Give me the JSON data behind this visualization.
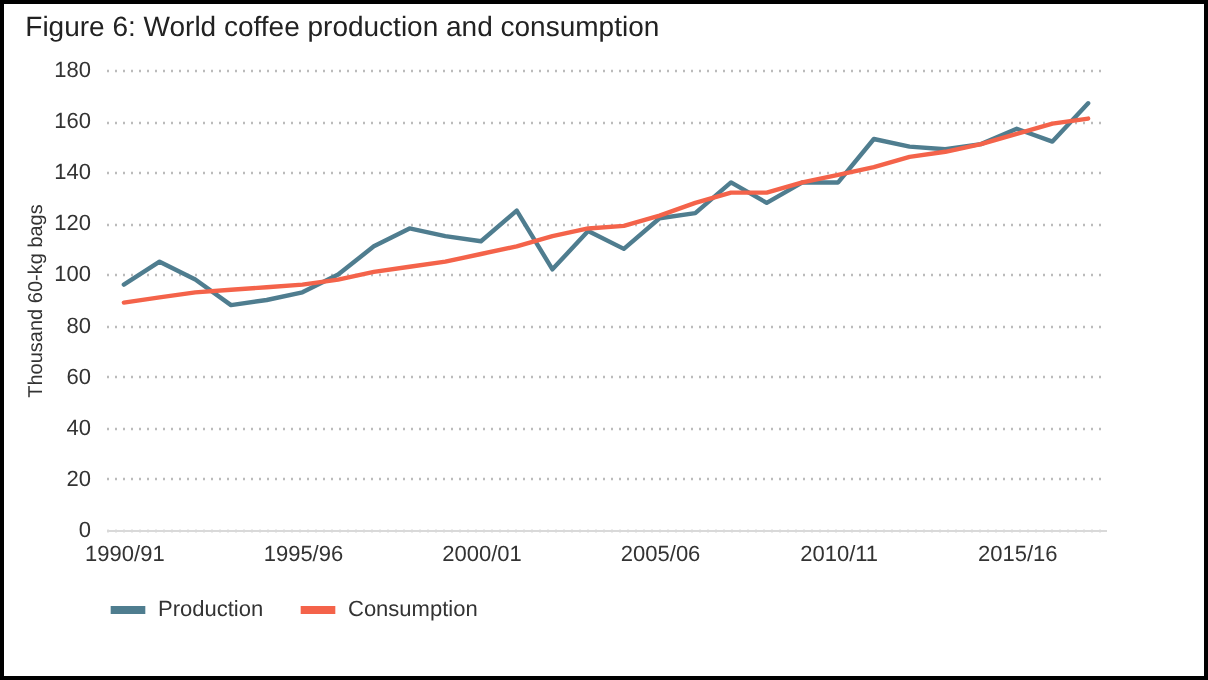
{
  "chart_data": {
    "type": "line",
    "title": "Figure 6: World coffee production  and consumption",
    "ylabel": "Thousand 60-kg bags",
    "categories": [
      "1990/91",
      null,
      null,
      null,
      null,
      "1995/96",
      null,
      null,
      null,
      null,
      "2000/01",
      null,
      null,
      null,
      null,
      "2005/06",
      null,
      null,
      null,
      null,
      "2010/11",
      null,
      null,
      null,
      null,
      "2015/16",
      null,
      null
    ],
    "series": [
      {
        "name": "Production",
        "color": "#4f7d8f",
        "values": [
          96,
          105,
          98,
          88,
          90,
          93,
          100,
          111,
          118,
          115,
          113,
          125,
          102,
          117,
          110,
          122,
          124,
          136,
          128,
          136,
          136,
          153,
          150,
          149,
          151,
          157,
          152,
          167
        ]
      },
      {
        "name": "Consumption",
        "color": "#f4634a",
        "values": [
          89,
          91,
          93,
          94,
          95,
          96,
          98,
          101,
          103,
          105,
          108,
          111,
          115,
          118,
          119,
          123,
          128,
          132,
          132,
          136,
          139,
          142,
          146,
          148,
          151,
          155,
          159,
          161
        ]
      }
    ],
    "ylim": [
      0,
      180
    ],
    "yticks": [
      0,
      20,
      40,
      60,
      80,
      100,
      120,
      140,
      160,
      180
    ],
    "grid": "y",
    "legend": "bottom",
    "marker": "none",
    "line_style": "solid"
  }
}
